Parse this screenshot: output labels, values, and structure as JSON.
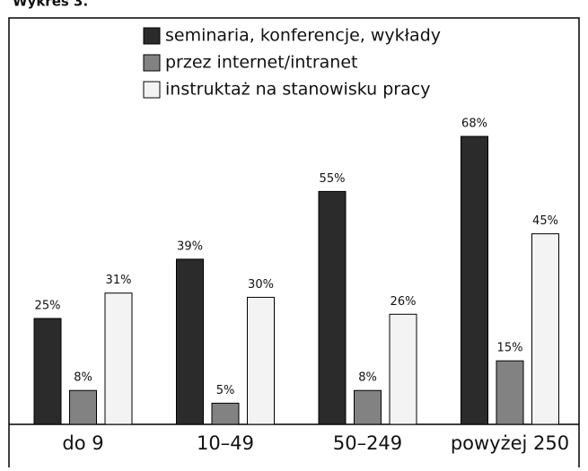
{
  "chart_data": {
    "type": "bar",
    "title": "Wykres 3.",
    "categories": [
      "do 9",
      "10–49",
      "50–249",
      "powyżej 250"
    ],
    "series": [
      {
        "name": "seminaria, konferencje, wykłady",
        "color": "#2b2b2b",
        "values": [
          25,
          39,
          55,
          68
        ],
        "value_labels": [
          "25%",
          "39%",
          "55%",
          "68%"
        ]
      },
      {
        "name": "przez internet/intranet",
        "color": "#828282",
        "values": [
          8,
          5,
          8,
          15
        ],
        "value_labels": [
          "8%",
          "5%",
          "8%",
          "15%"
        ]
      },
      {
        "name": "instruktaż na stanowisku pracy",
        "color": "#f3f3f3",
        "values": [
          31,
          30,
          26,
          45
        ],
        "value_labels": [
          "31%",
          "30%",
          "26%",
          "45%"
        ]
      }
    ],
    "legend": "top"
  }
}
